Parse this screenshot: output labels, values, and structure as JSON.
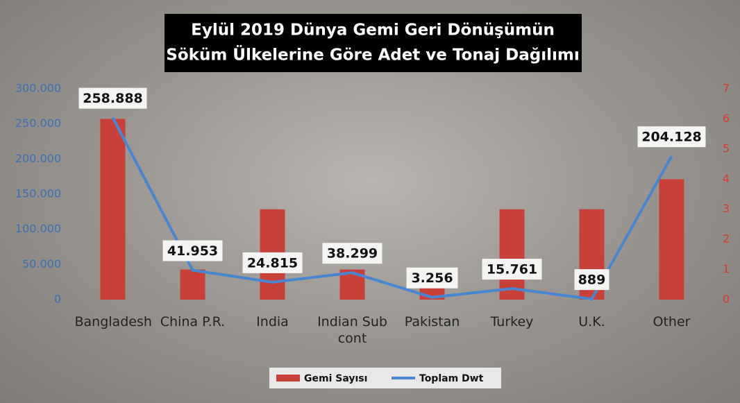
{
  "chart_data": {
    "type": "bar",
    "title": [
      "Eylül 2019 Dünya Gemi Geri Dönüşümün",
      "Söküm Ülkelerine Göre Adet ve Tonaj Dağılımı"
    ],
    "categories": [
      "Bangladesh",
      "China P.R.",
      "India",
      "Indian Sub cont",
      "Pakistan",
      "Turkey",
      "U.K.",
      "Other"
    ],
    "series": [
      {
        "name": "Gemi Sayısı",
        "type": "bar",
        "axis": "y2",
        "color": "#c8403a",
        "values": [
          6,
          1,
          3,
          1,
          1,
          3,
          3,
          4
        ]
      },
      {
        "name": "Toplam Dwt",
        "type": "line",
        "color": "#4a86d0",
        "values": [
          258888,
          41953,
          24815,
          38299,
          3256,
          15761,
          889,
          204128
        ],
        "value_labels": [
          "258.888",
          "41.953",
          "24.815",
          "38.299",
          "3.256",
          "15.761",
          "889",
          "204.128"
        ]
      }
    ],
    "ylim": [
      0,
      300000
    ],
    "yticks": [
      0,
      {
        "value": 50000,
        "label": "50.000"
      },
      {
        "value": 100000,
        "label": "100.000"
      },
      {
        "value": 150000,
        "label": "150.000"
      },
      {
        "value": 200000,
        "label": "200.000"
      },
      {
        "value": 250000,
        "label": "250.000"
      },
      {
        "value": 300000,
        "label": "300.000"
      }
    ],
    "y2lim": [
      0,
      7
    ],
    "y2ticks": [
      0,
      1,
      2,
      3,
      4,
      5,
      6,
      7
    ],
    "legend": "bottom"
  }
}
